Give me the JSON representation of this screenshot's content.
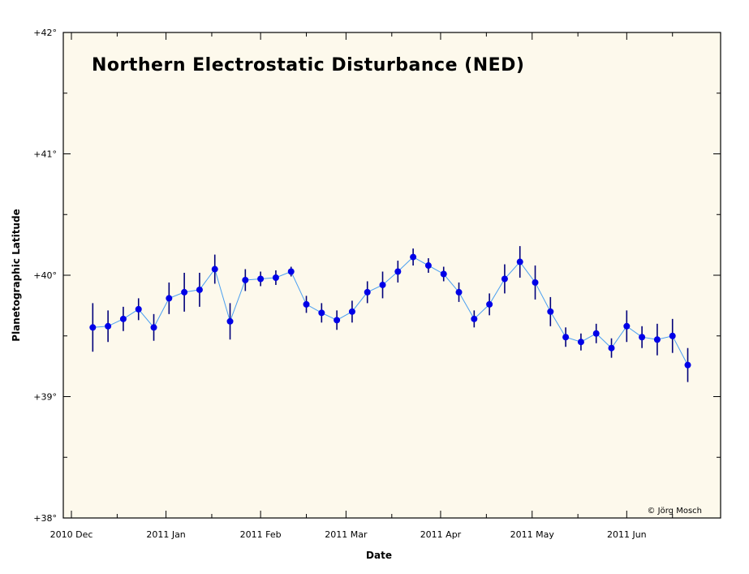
{
  "colors": {
    "plot_background": "#fdf9ec",
    "line": "#4a9ff0",
    "points": "#0000e8",
    "error_bars": "#00007a",
    "axis": "#000000"
  },
  "chart_data": {
    "type": "scatter",
    "title": "Northern Electrostatic Disturbance (NED)",
    "xlabel": "Date",
    "ylabel": "Planetographic Latitude",
    "credit": "© Jörg Mosch",
    "xlim": [
      "2010-12-01",
      "2011-06-30"
    ],
    "ylim": [
      38,
      42
    ],
    "x_ticks": [
      {
        "date": "2010-12-01",
        "label": "2010 Dec"
      },
      {
        "date": "2011-01-01",
        "label": "2011 Jan"
      },
      {
        "date": "2011-02-01",
        "label": "2011 Feb"
      },
      {
        "date": "2011-03-01",
        "label": "2011 Mar"
      },
      {
        "date": "2011-04-01",
        "label": "2011 Apr"
      },
      {
        "date": "2011-05-01",
        "label": "2011 May"
      },
      {
        "date": "2011-06-01",
        "label": "2011 Jun"
      }
    ],
    "y_ticks": [
      {
        "value": 38,
        "label": "+38°"
      },
      {
        "value": 39,
        "label": "+39°"
      },
      {
        "value": 40,
        "label": "+40°"
      },
      {
        "value": 41,
        "label": "+41°"
      },
      {
        "value": 42,
        "label": "+42°"
      }
    ],
    "grid": false,
    "series": [
      {
        "points": [
          {
            "x": "2010-12-08",
            "y": 39.57,
            "yerr": 0.2
          },
          {
            "x": "2010-12-13",
            "y": 39.58,
            "yerr": 0.13
          },
          {
            "x": "2010-12-18",
            "y": 39.64,
            "yerr": 0.1
          },
          {
            "x": "2010-12-23",
            "y": 39.72,
            "yerr": 0.09
          },
          {
            "x": "2010-12-28",
            "y": 39.57,
            "yerr": 0.11
          },
          {
            "x": "2011-01-02",
            "y": 39.81,
            "yerr": 0.13
          },
          {
            "x": "2011-01-07",
            "y": 39.86,
            "yerr": 0.16
          },
          {
            "x": "2011-01-12",
            "y": 39.88,
            "yerr": 0.14
          },
          {
            "x": "2011-01-17",
            "y": 40.05,
            "yerr": 0.12
          },
          {
            "x": "2011-01-22",
            "y": 39.62,
            "yerr": 0.15
          },
          {
            "x": "2011-01-27",
            "y": 39.96,
            "yerr": 0.09
          },
          {
            "x": "2011-02-01",
            "y": 39.97,
            "yerr": 0.06
          },
          {
            "x": "2011-02-06",
            "y": 39.98,
            "yerr": 0.06
          },
          {
            "x": "2011-02-11",
            "y": 40.03,
            "yerr": 0.04
          },
          {
            "x": "2011-02-16",
            "y": 39.76,
            "yerr": 0.07
          },
          {
            "x": "2011-02-21",
            "y": 39.69,
            "yerr": 0.08
          },
          {
            "x": "2011-02-26",
            "y": 39.63,
            "yerr": 0.08
          },
          {
            "x": "2011-03-03",
            "y": 39.7,
            "yerr": 0.09
          },
          {
            "x": "2011-03-08",
            "y": 39.86,
            "yerr": 0.09
          },
          {
            "x": "2011-03-13",
            "y": 39.92,
            "yerr": 0.11
          },
          {
            "x": "2011-03-18",
            "y": 40.03,
            "yerr": 0.09
          },
          {
            "x": "2011-03-23",
            "y": 40.15,
            "yerr": 0.07
          },
          {
            "x": "2011-03-28",
            "y": 40.08,
            "yerr": 0.06
          },
          {
            "x": "2011-04-02",
            "y": 40.01,
            "yerr": 0.06
          },
          {
            "x": "2011-04-07",
            "y": 39.86,
            "yerr": 0.08
          },
          {
            "x": "2011-04-12",
            "y": 39.64,
            "yerr": 0.07
          },
          {
            "x": "2011-04-17",
            "y": 39.76,
            "yerr": 0.09
          },
          {
            "x": "2011-04-22",
            "y": 39.97,
            "yerr": 0.12
          },
          {
            "x": "2011-04-27",
            "y": 40.11,
            "yerr": 0.13
          },
          {
            "x": "2011-05-02",
            "y": 39.94,
            "yerr": 0.14
          },
          {
            "x": "2011-05-07",
            "y": 39.7,
            "yerr": 0.12
          },
          {
            "x": "2011-05-12",
            "y": 39.49,
            "yerr": 0.08
          },
          {
            "x": "2011-05-17",
            "y": 39.45,
            "yerr": 0.07
          },
          {
            "x": "2011-05-22",
            "y": 39.52,
            "yerr": 0.08
          },
          {
            "x": "2011-05-27",
            "y": 39.4,
            "yerr": 0.08
          },
          {
            "x": "2011-06-01",
            "y": 39.58,
            "yerr": 0.13
          },
          {
            "x": "2011-06-06",
            "y": 39.49,
            "yerr": 0.09
          },
          {
            "x": "2011-06-11",
            "y": 39.47,
            "yerr": 0.13
          },
          {
            "x": "2011-06-16",
            "y": 39.5,
            "yerr": 0.14
          },
          {
            "x": "2011-06-21",
            "y": 39.26,
            "yerr": 0.14
          }
        ]
      }
    ]
  }
}
